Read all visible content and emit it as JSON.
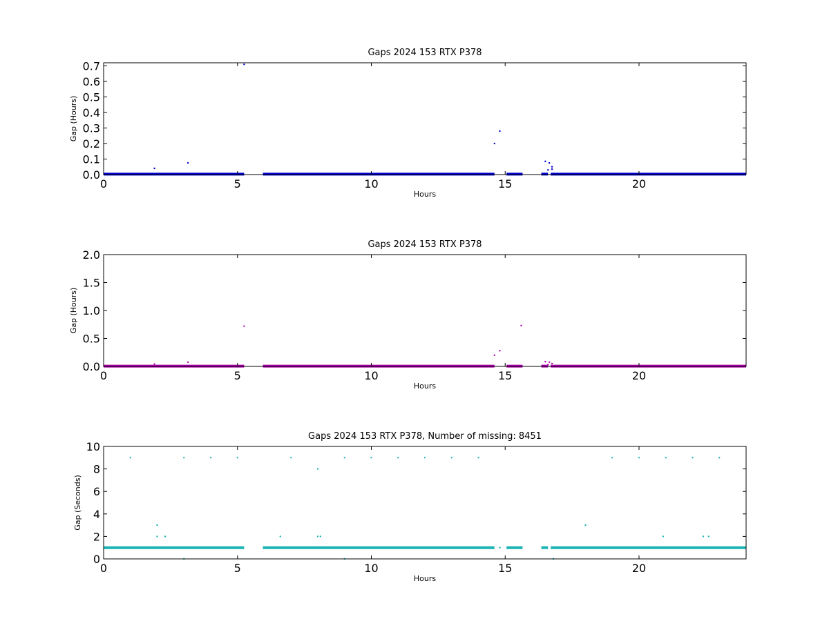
{
  "chart_data": [
    {
      "type": "scatter",
      "title": "Gaps 2024 153 RTX  P378",
      "xlabel": "Hours",
      "ylabel": "Gap (Hours)",
      "xlim": [
        0,
        24
      ],
      "ylim": [
        0,
        0.72
      ],
      "xticks": [
        "0",
        "5",
        "10",
        "15",
        "20"
      ],
      "xtick_values": [
        0,
        5,
        10,
        15,
        20
      ],
      "yticks": [
        "0.0",
        "0.1",
        "0.2",
        "0.3",
        "0.4",
        "0.5",
        "0.6",
        "0.7"
      ],
      "ytick_values": [
        0,
        0.1,
        0.2,
        0.3,
        0.4,
        0.5,
        0.6,
        0.7
      ],
      "grid": false,
      "color": "#0000cc",
      "baseline": {
        "y": 0.003,
        "segments": [
          [
            0,
            5.25
          ],
          [
            5.95,
            14.6
          ],
          [
            15.05,
            15.65
          ],
          [
            16.35,
            16.6
          ],
          [
            16.7,
            24
          ]
        ]
      },
      "points": [
        {
          "x": 1.9,
          "y": 0.04
        },
        {
          "x": 3.15,
          "y": 0.075
        },
        {
          "x": 5.25,
          "y": 0.71
        },
        {
          "x": 14.6,
          "y": 0.2
        },
        {
          "x": 14.8,
          "y": 0.28
        },
        {
          "x": 16.5,
          "y": 0.085
        },
        {
          "x": 16.6,
          "y": 0.03
        },
        {
          "x": 16.65,
          "y": 0.075
        },
        {
          "x": 16.75,
          "y": 0.05
        },
        {
          "x": 16.75,
          "y": 0.035
        }
      ]
    },
    {
      "type": "scatter",
      "title": "Gaps 2024 153 RTX  P378",
      "xlabel": "Hours",
      "ylabel": "Gap (Hours)",
      "xlim": [
        0,
        24
      ],
      "ylim": [
        0,
        2.0
      ],
      "xticks": [
        "0",
        "5",
        "10",
        "15",
        "20"
      ],
      "xtick_values": [
        0,
        5,
        10,
        15,
        20
      ],
      "yticks": [
        "0.0",
        "0.5",
        "1.0",
        "1.5",
        "2.0"
      ],
      "ytick_values": [
        0,
        0.5,
        1.0,
        1.5,
        2.0
      ],
      "grid": false,
      "color": "#aa00aa",
      "baseline": {
        "y": 0.005,
        "segments": [
          [
            0,
            5.25
          ],
          [
            5.95,
            14.6
          ],
          [
            15.05,
            15.65
          ],
          [
            16.35,
            16.6
          ],
          [
            16.7,
            24
          ]
        ]
      },
      "points": [
        {
          "x": 1.9,
          "y": 0.04
        },
        {
          "x": 3.15,
          "y": 0.075
        },
        {
          "x": 5.25,
          "y": 0.72
        },
        {
          "x": 14.6,
          "y": 0.2
        },
        {
          "x": 14.8,
          "y": 0.28
        },
        {
          "x": 15.6,
          "y": 0.73
        },
        {
          "x": 16.5,
          "y": 0.085
        },
        {
          "x": 16.6,
          "y": 0.03
        },
        {
          "x": 16.65,
          "y": 0.075
        },
        {
          "x": 16.75,
          "y": 0.05
        }
      ]
    },
    {
      "type": "scatter",
      "title": "Gaps 2024 153 RTX  P378, Number of missing: 8451",
      "xlabel": "Hours",
      "ylabel": "Gap (Seconds)",
      "xlim": [
        0,
        24
      ],
      "ylim": [
        0,
        10
      ],
      "xticks": [
        "0",
        "5",
        "10",
        "15",
        "20"
      ],
      "xtick_values": [
        0,
        5,
        10,
        15,
        20
      ],
      "yticks": [
        "0",
        "2",
        "4",
        "6",
        "8",
        "10"
      ],
      "ytick_values": [
        0,
        2,
        4,
        6,
        8,
        10
      ],
      "grid": false,
      "color": "#1ab3b3",
      "baseline": {
        "y": 1,
        "segments": [
          [
            0,
            5.25
          ],
          [
            5.95,
            14.6
          ],
          [
            15.05,
            15.65
          ],
          [
            16.35,
            16.6
          ],
          [
            16.7,
            24
          ]
        ]
      },
      "points": [
        {
          "x": 1.0,
          "y": 9
        },
        {
          "x": 3.0,
          "y": 9
        },
        {
          "x": 4.0,
          "y": 9
        },
        {
          "x": 5.0,
          "y": 9
        },
        {
          "x": 7.0,
          "y": 9
        },
        {
          "x": 9.0,
          "y": 9
        },
        {
          "x": 10.0,
          "y": 9
        },
        {
          "x": 11.0,
          "y": 9
        },
        {
          "x": 12.0,
          "y": 9
        },
        {
          "x": 13.0,
          "y": 9
        },
        {
          "x": 14.0,
          "y": 9
        },
        {
          "x": 19.0,
          "y": 9
        },
        {
          "x": 20.0,
          "y": 9
        },
        {
          "x": 21.0,
          "y": 9
        },
        {
          "x": 22.0,
          "y": 9
        },
        {
          "x": 23.0,
          "y": 9
        },
        {
          "x": 8.0,
          "y": 8
        },
        {
          "x": 2.0,
          "y": 3
        },
        {
          "x": 18.0,
          "y": 3
        },
        {
          "x": 2.0,
          "y": 2
        },
        {
          "x": 2.3,
          "y": 2
        },
        {
          "x": 6.6,
          "y": 2
        },
        {
          "x": 8.0,
          "y": 2
        },
        {
          "x": 8.1,
          "y": 2
        },
        {
          "x": 20.9,
          "y": 2
        },
        {
          "x": 22.4,
          "y": 2
        },
        {
          "x": 22.6,
          "y": 2
        },
        {
          "x": 3.0,
          "y": 0
        },
        {
          "x": 9.0,
          "y": 0
        },
        {
          "x": 16.8,
          "y": 0
        },
        {
          "x": 14.8,
          "y": 1
        }
      ]
    }
  ]
}
